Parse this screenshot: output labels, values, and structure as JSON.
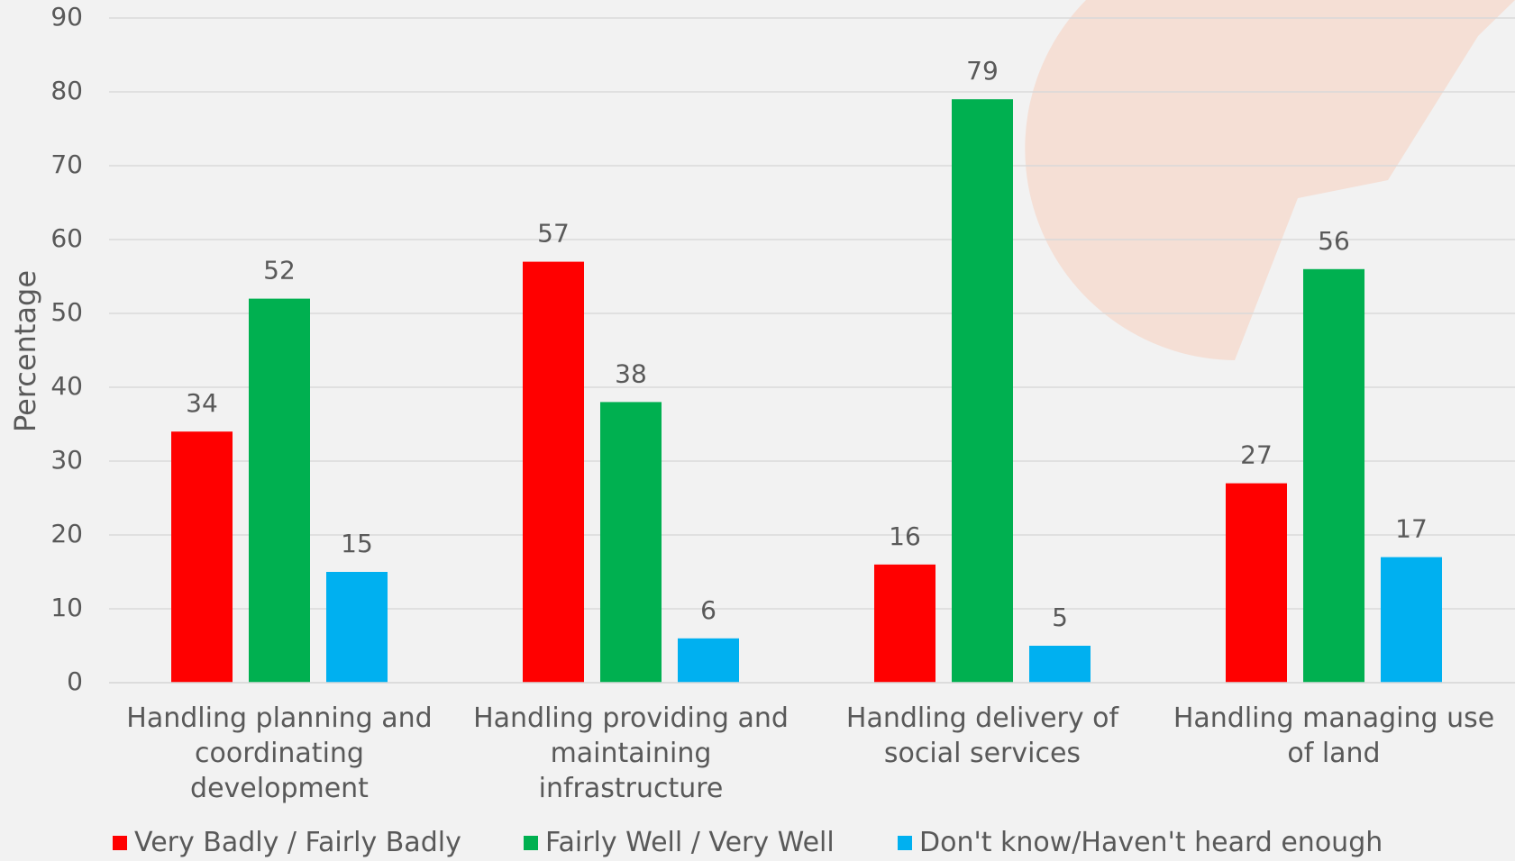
{
  "chart_data": {
    "type": "bar",
    "y_label": "Percentage",
    "categories": [
      "Handling planning and coordinating development",
      "Handling providing and maintaining infrastructure",
      "Handling delivery of social services",
      "Handling managing use of land"
    ],
    "series": [
      {
        "name": "Very Badly / Fairly Badly",
        "color": "#ff0000",
        "values": [
          34,
          57,
          16,
          27
        ]
      },
      {
        "name": "Fairly Well / Very Well",
        "color": "#00b050",
        "values": [
          52,
          38,
          79,
          56
        ]
      },
      {
        "name": "Don't know/Haven't heard enough",
        "color": "#00b0f0",
        "values": [
          15,
          6,
          5,
          17
        ]
      }
    ],
    "ylim": [
      0,
      90
    ],
    "yticks": [
      0,
      10,
      20,
      30,
      40,
      50,
      60,
      70,
      80,
      90
    ],
    "grid": true,
    "legend": "bottom"
  }
}
